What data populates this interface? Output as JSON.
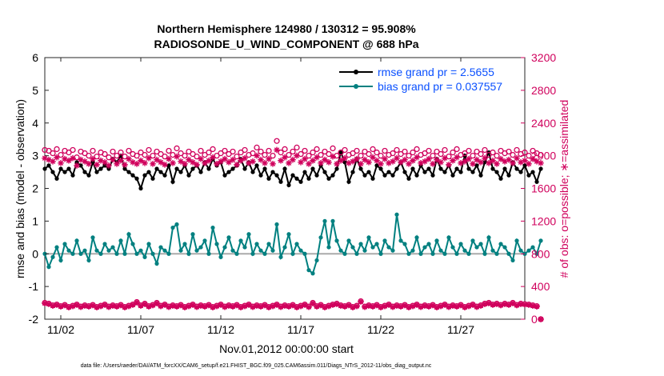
{
  "chart_data": {
    "type": "line",
    "title": "Northern Hemisphere 124980 / 130312 = 95.908%",
    "subtitle": "RADIOSONDE_U_WIND_COMPONENT @ 688 hPa",
    "xlabel": "Nov.01,2012 00:00:00 start",
    "ylabel_left": "rmse and bias (model - observation)",
    "ylabel_right": "# of obs: o=possible; ∗=assimilated",
    "xlim": [
      0.5,
      30.5
    ],
    "ylim_left": [
      -2,
      6
    ],
    "ylim_right": [
      0,
      3200
    ],
    "x_ticks": [
      {
        "x": 1.5,
        "label": "11/02"
      },
      {
        "x": 6.5,
        "label": "11/07"
      },
      {
        "x": 11.5,
        "label": "11/12"
      },
      {
        "x": 16.5,
        "label": "11/17"
      },
      {
        "x": 21.5,
        "label": "11/22"
      },
      {
        "x": 26.5,
        "label": "11/27"
      }
    ],
    "y_ticks_left": [
      -2,
      -1,
      0,
      1,
      2,
      3,
      4,
      5,
      6
    ],
    "y_ticks_right": [
      0,
      400,
      800,
      1200,
      1600,
      2000,
      2400,
      2800,
      3200
    ],
    "x_start": 0.5,
    "x_step": 0.25,
    "legend": [
      {
        "label": "rmse grand pr = 2.5655",
        "color": "#000000"
      },
      {
        "label": "bias grand pr = 0.037557",
        "color": "#008080"
      }
    ],
    "series": [
      {
        "name": "rmse",
        "axis": "left",
        "color": "#000000",
        "marker": "dot",
        "values": [
          2.6,
          2.7,
          2.5,
          2.3,
          2.6,
          2.5,
          2.6,
          2.4,
          2.8,
          2.7,
          2.5,
          2.4,
          2.8,
          2.5,
          2.6,
          2.7,
          2.6,
          2.9,
          2.8,
          3.0,
          2.6,
          2.5,
          2.4,
          2.3,
          2.0,
          2.4,
          2.5,
          2.3,
          2.6,
          2.5,
          2.4,
          2.7,
          2.2,
          2.6,
          2.5,
          2.7,
          2.4,
          2.6,
          2.7,
          2.5,
          2.8,
          2.6,
          2.9,
          2.7,
          2.8,
          2.4,
          2.5,
          2.6,
          2.7,
          2.9,
          2.6,
          2.8,
          2.5,
          2.7,
          2.4,
          2.6,
          2.3,
          2.5,
          2.4,
          2.2,
          2.6,
          2.1,
          2.4,
          2.3,
          2.2,
          2.5,
          2.3,
          2.6,
          2.4,
          2.7,
          2.5,
          2.3,
          2.4,
          2.6,
          3.1,
          2.8,
          2.2,
          2.5,
          2.9,
          2.6,
          2.4,
          2.5,
          2.3,
          2.7,
          2.6,
          2.4,
          2.5,
          2.4,
          2.6,
          2.8,
          2.5,
          2.3,
          2.6,
          2.4,
          2.7,
          2.5,
          2.6,
          2.4,
          2.9,
          2.6,
          2.5,
          2.7,
          2.4,
          2.6,
          2.5,
          3.0,
          2.6,
          2.5,
          2.7,
          2.4,
          2.8,
          3.1,
          2.6,
          2.5,
          2.3,
          2.6,
          2.4,
          2.8,
          2.6,
          2.5,
          2.7,
          2.4,
          2.5,
          2.2,
          2.6
        ]
      },
      {
        "name": "bias",
        "axis": "left",
        "color": "#008080",
        "marker": "dot",
        "values": [
          0.0,
          -0.4,
          -0.1,
          0.2,
          -0.2,
          0.3,
          0.1,
          0.0,
          0.4,
          0.0,
          0.1,
          -0.2,
          0.5,
          0.1,
          0.0,
          0.3,
          0.1,
          0.2,
          0.0,
          0.4,
          0.0,
          0.6,
          0.3,
          0.0,
          0.1,
          -0.1,
          0.3,
          0.0,
          -0.3,
          0.2,
          0.1,
          0.0,
          0.8,
          0.9,
          0.1,
          0.3,
          0.0,
          0.6,
          0.1,
          0.2,
          0.4,
          0.0,
          0.8,
          0.3,
          -0.1,
          0.2,
          0.5,
          0.1,
          0.0,
          0.4,
          0.2,
          0.6,
          0.0,
          0.3,
          0.1,
          0.0,
          0.3,
          0.1,
          0.9,
          -0.1,
          0.2,
          0.6,
          0.0,
          0.3,
          0.1,
          0.0,
          -0.5,
          -0.6,
          -0.2,
          0.5,
          1.0,
          0.2,
          1.0,
          0.4,
          0.1,
          0.0,
          0.4,
          0.2,
          0.0,
          0.3,
          0.1,
          0.5,
          0.2,
          0.3,
          0.0,
          0.4,
          0.2,
          0.1,
          1.2,
          0.4,
          0.3,
          0.0,
          0.1,
          0.5,
          0.0,
          0.2,
          0.3,
          0.0,
          0.4,
          0.1,
          0.0,
          0.5,
          0.2,
          0.0,
          0.3,
          0.1,
          0.0,
          0.4,
          0.2,
          0.3,
          0.0,
          0.5,
          0.1,
          0.0,
          0.3,
          0.2,
          0.0,
          -0.2,
          0.4,
          0.1,
          0.0,
          0.1,
          0.2,
          0.0,
          0.4
        ]
      },
      {
        "name": "possible",
        "axis": "right",
        "color": "#d0005c",
        "marker": "circle",
        "values": [
          2070,
          2060,
          2030,
          2080,
          2010,
          2060,
          2040,
          2070,
          1980,
          2050,
          2030,
          2000,
          2060,
          1990,
          2040,
          2020,
          1980,
          2050,
          2000,
          2040,
          1990,
          2060,
          2020,
          2000,
          2040,
          2010,
          2070,
          2000,
          2050,
          2020,
          1990,
          2060,
          2010,
          2090,
          2030,
          2000,
          2050,
          2020,
          1990,
          2060,
          2010,
          2040,
          2080,
          2000,
          2030,
          2060,
          2020,
          2050,
          1990,
          2040,
          2070,
          2010,
          2030,
          2100,
          2050,
          2010,
          2060,
          2000,
          2180,
          2040,
          2080,
          2010,
          2050,
          2100,
          2020,
          2060,
          2000,
          2040,
          2080,
          2010,
          2050,
          2020,
          2090,
          2000,
          2040,
          2070,
          2010,
          2030,
          2060,
          2000,
          2050,
          2020,
          2080,
          2040,
          2000,
          2060,
          2010,
          2030,
          2070,
          2020,
          2050,
          2000,
          2040,
          2080,
          2010,
          2030,
          2060,
          2000,
          2050,
          2020,
          2070,
          1990,
          2040,
          2080,
          2010,
          2030,
          2060,
          2000,
          2050,
          2020,
          2070,
          2010,
          2040,
          2000,
          2060,
          2030,
          2050,
          2010,
          2070,
          2020,
          2040,
          2000,
          2060,
          2030,
          2010
        ]
      },
      {
        "name": "assimilated",
        "axis": "right",
        "color": "#d0005c",
        "marker": "star",
        "values": [
          1970,
          1950,
          1930,
          1980,
          1910,
          1960,
          1940,
          1970,
          1880,
          1950,
          1930,
          1900,
          1960,
          1890,
          1940,
          1920,
          1880,
          1950,
          1900,
          1940,
          1890,
          1960,
          1920,
          1900,
          1940,
          1910,
          1970,
          1900,
          1950,
          1920,
          1890,
          1960,
          1910,
          1990,
          1930,
          1900,
          1950,
          1920,
          1890,
          1960,
          1910,
          1940,
          1980,
          1900,
          1930,
          1960,
          1920,
          1950,
          1890,
          1940,
          1970,
          1910,
          1930,
          2000,
          1950,
          1910,
          1960,
          1900,
          2070,
          1940,
          1980,
          1910,
          1950,
          2000,
          1920,
          1960,
          1900,
          1940,
          1980,
          1910,
          1950,
          1920,
          1990,
          1900,
          1940,
          1970,
          1910,
          1930,
          1960,
          1900,
          1950,
          1920,
          1980,
          1940,
          1900,
          1960,
          1910,
          1930,
          1970,
          1920,
          1950,
          1900,
          1940,
          1980,
          1910,
          1930,
          1960,
          1900,
          1950,
          1920,
          1970,
          1890,
          1940,
          1980,
          1910,
          1930,
          1960,
          1900,
          1950,
          1920,
          1970,
          1910,
          1940,
          1900,
          1960,
          1930,
          1950,
          1910,
          1970,
          1920,
          1940,
          1900,
          1960,
          1930,
          1910
        ]
      },
      {
        "name": "possible_low",
        "axis": "right",
        "color": "#d0005c",
        "marker": "circle",
        "values": [
          200,
          190,
          170,
          180,
          160,
          175,
          150,
          165,
          180,
          155,
          170,
          160,
          175,
          150,
          165,
          180,
          155,
          170,
          160,
          175,
          150,
          165,
          180,
          210,
          170,
          190,
          160,
          175,
          200,
          165,
          180,
          155,
          170,
          160,
          175,
          150,
          165,
          180,
          155,
          170,
          160,
          175,
          150,
          165,
          180,
          155,
          170,
          160,
          175,
          150,
          165,
          180,
          155,
          170,
          160,
          175,
          150,
          165,
          180,
          155,
          170,
          160,
          175,
          150,
          165,
          180,
          155,
          200,
          160,
          175,
          150,
          165,
          180,
          190,
          170,
          160,
          175,
          150,
          165,
          220,
          155,
          170,
          160,
          175,
          150,
          165,
          180,
          155,
          170,
          160,
          175,
          150,
          165,
          180,
          155,
          170,
          160,
          175,
          150,
          165,
          180,
          155,
          170,
          160,
          175,
          150,
          165,
          180,
          155,
          170,
          190,
          200,
          180,
          190,
          175,
          190,
          180,
          200,
          175,
          190,
          185,
          180,
          170,
          160,
          0
        ]
      },
      {
        "name": "assimilated_low",
        "axis": "right",
        "color": "#d0005c",
        "marker": "star",
        "values": [
          195,
          185,
          165,
          175,
          155,
          170,
          145,
          160,
          175,
          150,
          165,
          155,
          170,
          145,
          160,
          175,
          150,
          165,
          155,
          170,
          145,
          160,
          175,
          205,
          165,
          185,
          155,
          170,
          195,
          160,
          175,
          150,
          165,
          155,
          170,
          145,
          160,
          175,
          150,
          165,
          155,
          170,
          145,
          160,
          175,
          150,
          165,
          155,
          170,
          145,
          160,
          175,
          150,
          165,
          155,
          170,
          145,
          160,
          175,
          150,
          165,
          155,
          170,
          145,
          160,
          175,
          150,
          195,
          155,
          170,
          145,
          160,
          175,
          185,
          165,
          155,
          170,
          145,
          160,
          215,
          150,
          165,
          155,
          170,
          145,
          160,
          175,
          150,
          165,
          155,
          170,
          145,
          160,
          175,
          150,
          165,
          155,
          170,
          145,
          160,
          175,
          150,
          165,
          155,
          170,
          145,
          160,
          175,
          150,
          165,
          185,
          195,
          175,
          185,
          170,
          185,
          175,
          195,
          170,
          185,
          180,
          175,
          165,
          155,
          0
        ]
      }
    ],
    "zero_line": true,
    "grid": false,
    "legend_position": "top-right"
  },
  "footer": "data file: /Users/raeder/DAI/ATM_forcXX/CAM6_setup/f.e21.FHIST_BGC.f09_025.CAM6assim.011/Diags_NTrS_2012-11/obs_diag_output.nc"
}
